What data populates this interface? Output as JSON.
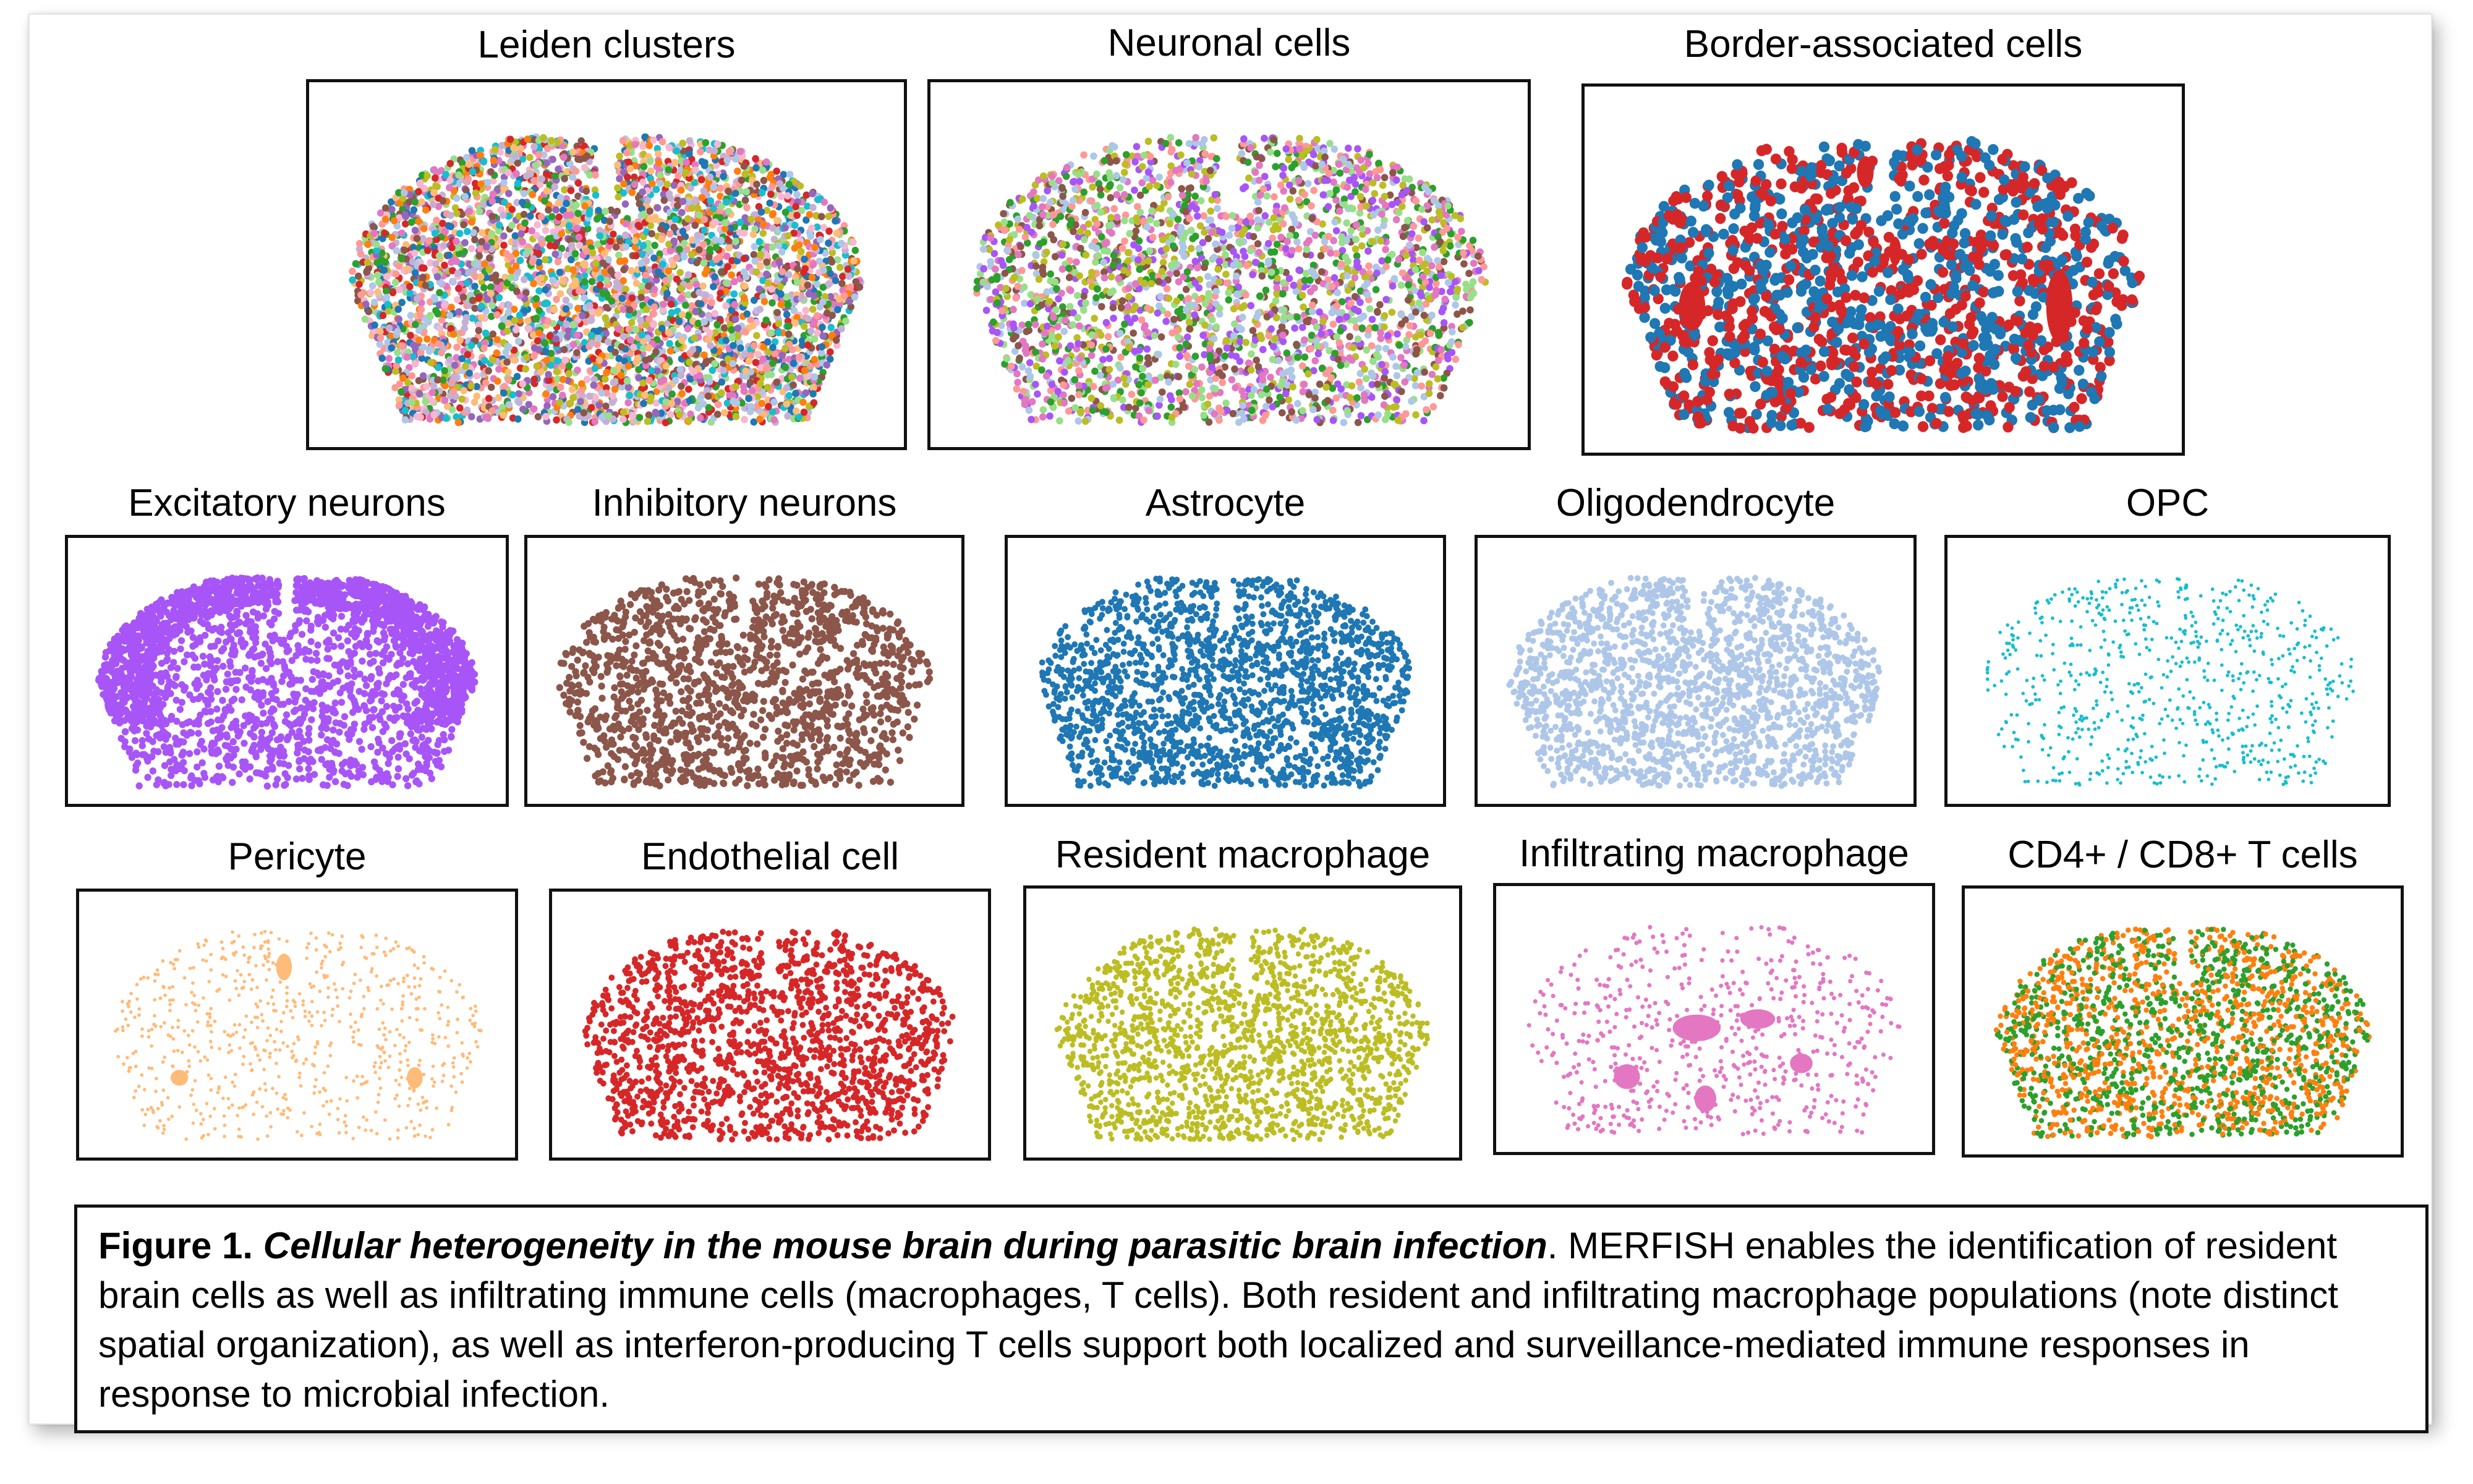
{
  "figure": {
    "panels": [
      {
        "id": "leiden",
        "title": "Leiden clusters",
        "colors": [
          "#1f77b4",
          "#ff7f0e",
          "#2ca02c",
          "#d62728",
          "#9467bd",
          "#8c564b",
          "#e377c2",
          "#bcbd22",
          "#17becf",
          "#aec7e8",
          "#ffbb78",
          "#98df8a",
          "#ff9896",
          "#c5b0d5",
          "#f7b6d2"
        ]
      },
      {
        "id": "neuronal",
        "title": "Neuronal cells",
        "colors": [
          "#a855f7",
          "#bcbd22",
          "#e377c2",
          "#98df8a",
          "#ff9896",
          "#aec7e8",
          "#2ca02c",
          "#8c564b"
        ]
      },
      {
        "id": "bam",
        "title": "Border-associated cells",
        "colors": [
          "#1f77b4",
          "#d62728"
        ]
      },
      {
        "id": "excitatory",
        "title": "Excitatory neurons",
        "colors": [
          "#a855f7"
        ]
      },
      {
        "id": "inhibitory",
        "title": "Inhibitory neurons",
        "colors": [
          "#8c564b"
        ]
      },
      {
        "id": "astrocyte",
        "title": "Astrocyte",
        "colors": [
          "#1f77b4"
        ]
      },
      {
        "id": "oligodendrocyte",
        "title": "Oligodendrocyte",
        "colors": [
          "#aec7e8"
        ]
      },
      {
        "id": "opc",
        "title": "OPC",
        "colors": [
          "#17becf"
        ]
      },
      {
        "id": "pericyte",
        "title": "Pericyte",
        "colors": [
          "#ffbb78"
        ]
      },
      {
        "id": "endothelial",
        "title": "Endothelial cell",
        "colors": [
          "#d62728"
        ]
      },
      {
        "id": "resident-macrophage",
        "title": "Resident macrophage",
        "colors": [
          "#bcbd22"
        ]
      },
      {
        "id": "infiltrating-macrophage",
        "title": "Infiltrating macrophage",
        "colors": [
          "#e377c2"
        ]
      },
      {
        "id": "t-cells",
        "title": "CD4+ / CD8+ T cells",
        "colors": [
          "#ff7f0e",
          "#2ca02c"
        ]
      }
    ],
    "caption": {
      "label": "Figure 1.",
      "title": "Cellular heterogeneity in the mouse brain during parasitic brain infection",
      "body": ". MERFISH enables the identification of resident brain cells as well as infiltrating immune cells (macrophages, T cells). Both resident and infiltrating macrophage populations (note distinct spatial organization), as well as interferon-producing T cells support both localized and surveillance-mediated immune responses in response to microbial infection."
    }
  }
}
